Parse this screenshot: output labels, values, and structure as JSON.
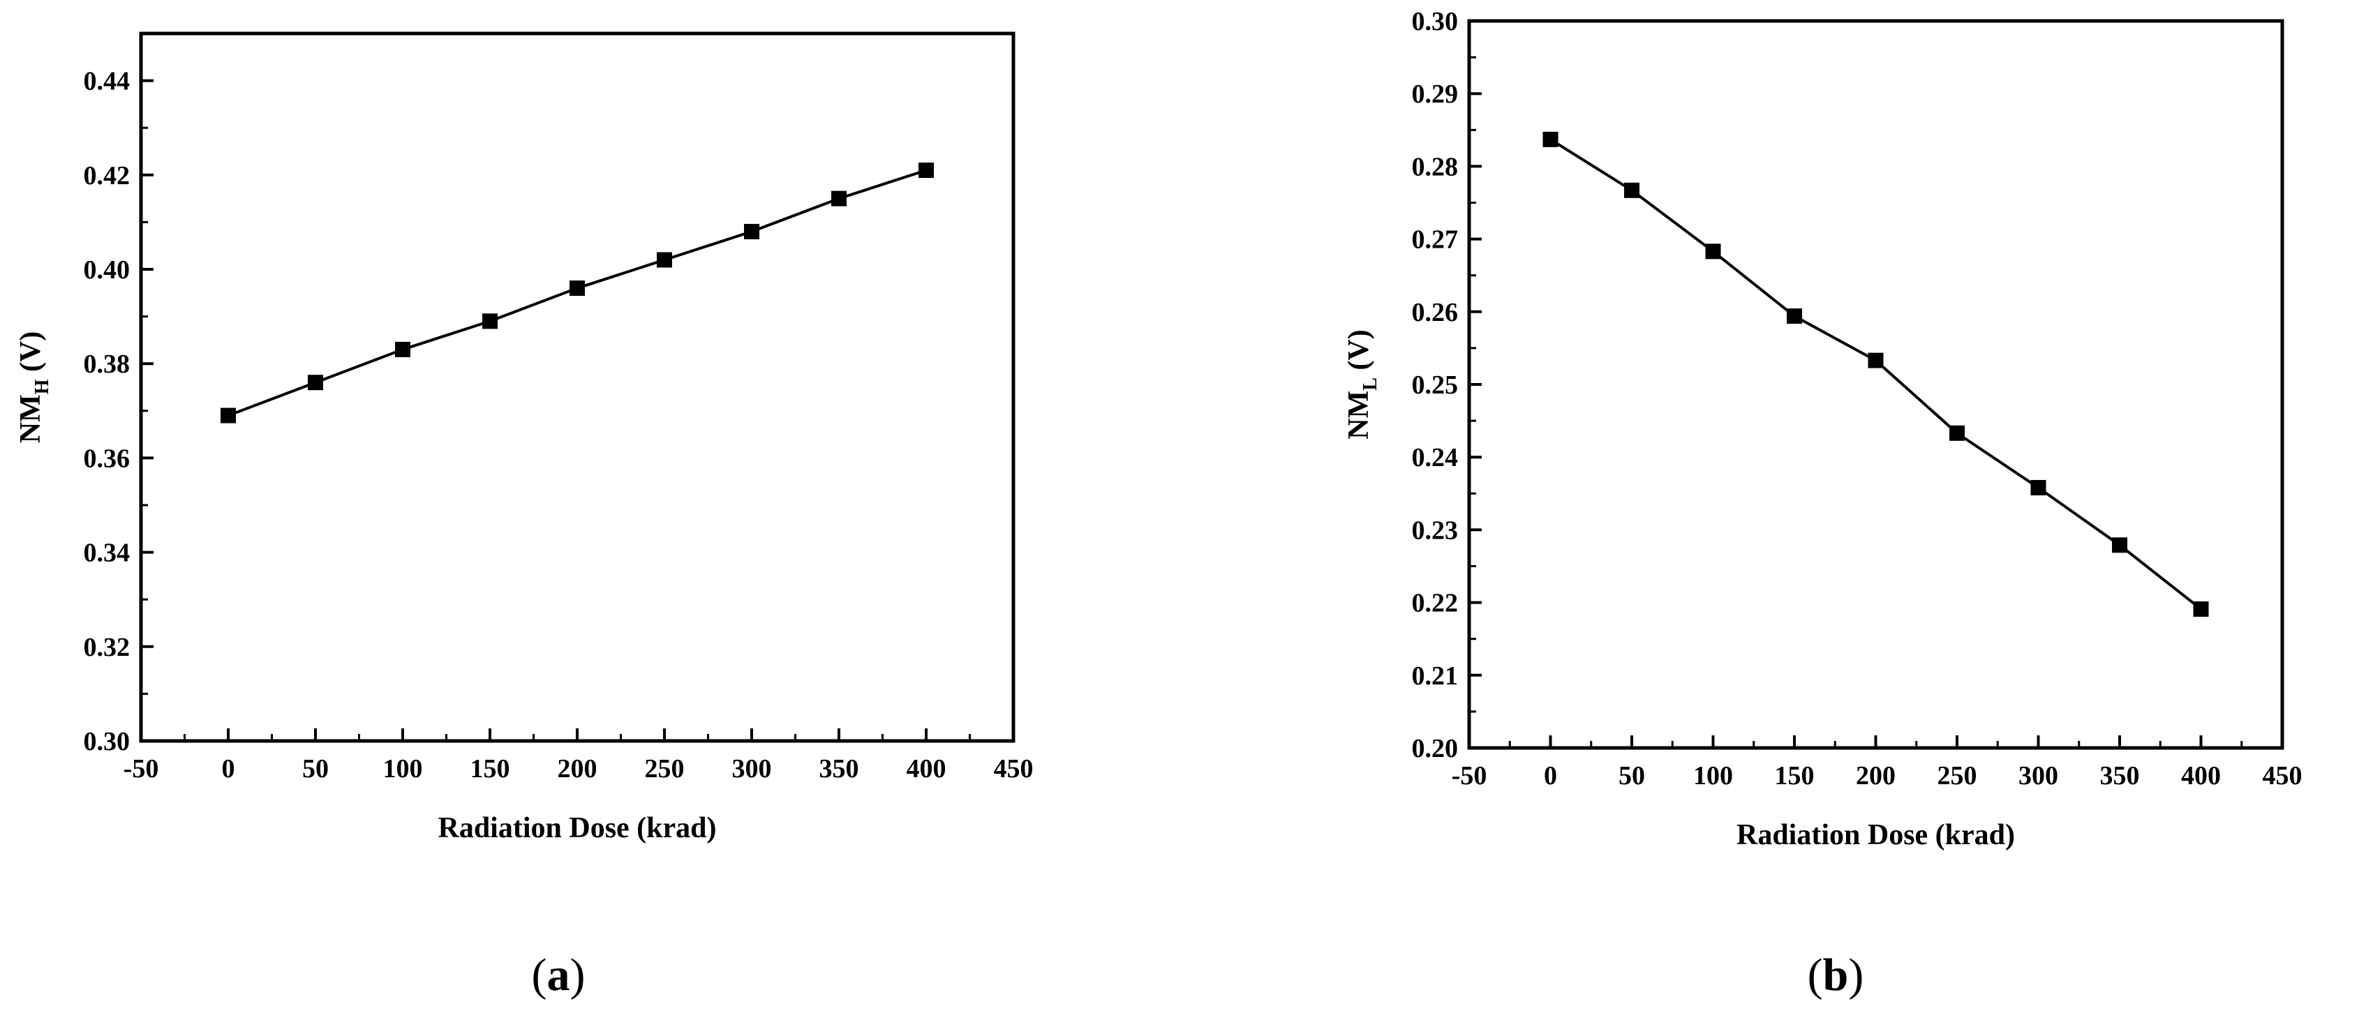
{
  "chart_data": [
    {
      "type": "line",
      "panel_label": "a",
      "xlabel": "Radiation Dose (krad)",
      "ylabel_main": "NM",
      "ylabel_sub": "H",
      "ylabel_unit": " (V)",
      "xlim": [
        -50,
        450
      ],
      "ylim": [
        0.3,
        0.45
      ],
      "xticks": [
        -50,
        0,
        50,
        100,
        150,
        200,
        250,
        300,
        350,
        400,
        450
      ],
      "yticks": [
        0.3,
        0.32,
        0.34,
        0.36,
        0.38,
        0.4,
        0.42,
        0.44
      ],
      "ytick_decimals": 2,
      "grid": false,
      "marker": "square",
      "color": "#000000",
      "series": [
        {
          "x": [
            0,
            50,
            100,
            150,
            200,
            250,
            300,
            350,
            400
          ],
          "values": [
            0.369,
            0.376,
            0.383,
            0.389,
            0.396,
            0.402,
            0.408,
            0.415,
            0.421
          ]
        }
      ]
    },
    {
      "type": "line",
      "panel_label": "b",
      "xlabel": "Radiation Dose (krad)",
      "ylabel_main": "NM",
      "ylabel_sub": "L",
      "ylabel_unit": " (V)",
      "xlim": [
        -50,
        450
      ],
      "ylim": [
        0.2,
        0.3
      ],
      "xticks": [
        -50,
        0,
        50,
        100,
        150,
        200,
        250,
        300,
        350,
        400,
        450
      ],
      "yticks": [
        0.2,
        0.21,
        0.22,
        0.23,
        0.24,
        0.25,
        0.26,
        0.27,
        0.28,
        0.29,
        0.3
      ],
      "ytick_decimals": 2,
      "grid": false,
      "marker": "square",
      "color": "#000000",
      "series": [
        {
          "x": [
            0,
            50,
            100,
            150,
            200,
            250,
            300,
            350,
            400
          ],
          "values": [
            0.2837,
            0.2767,
            0.2683,
            0.2594,
            0.2533,
            0.2433,
            0.2358,
            0.2279,
            0.2191
          ]
        }
      ]
    }
  ]
}
